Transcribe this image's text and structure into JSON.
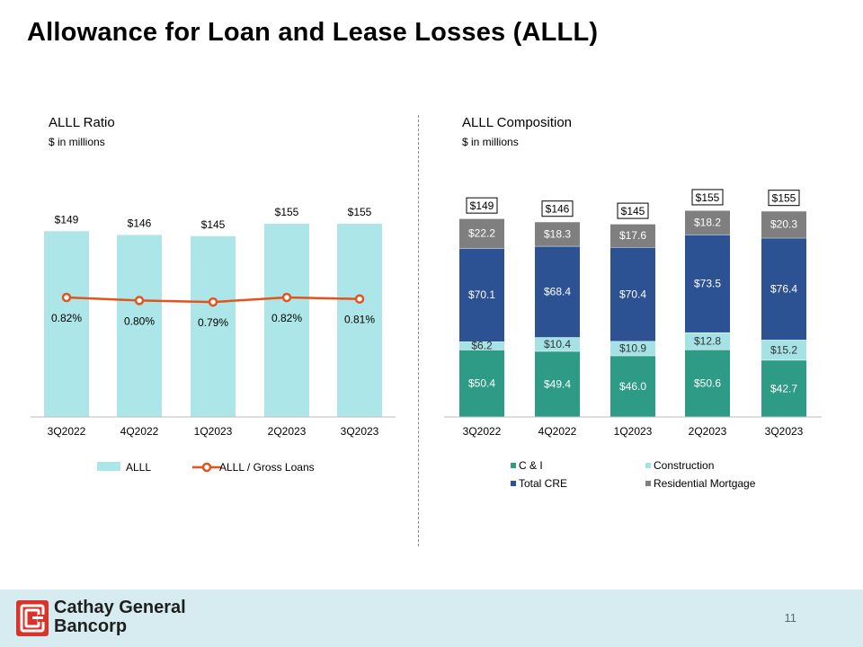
{
  "title": "Allowance for Loan and Lease Losses (ALLL)",
  "left_panel": {
    "title": "ALLL Ratio",
    "subtitle": "$ in millions"
  },
  "right_panel": {
    "title": "ALLL Composition",
    "subtitle": "$ in millions"
  },
  "footer": {
    "company_line1": "Cathay General",
    "company_line2": "Bancorp",
    "page_number": "11"
  },
  "colors": {
    "alll_bar": "#ade6e8",
    "ratio_line": "#e2541b",
    "ci": "#2e9b86",
    "construction": "#a4e2e6",
    "total_cre": "#2c5294",
    "residential_mortgage": "#7f7f7f",
    "logo_red": "#d9332b"
  },
  "chart_data": [
    {
      "type": "bar",
      "title": "ALLL Ratio",
      "categories": [
        "3Q2022",
        "4Q2022",
        "1Q2023",
        "2Q2023",
        "3Q2023"
      ],
      "series": [
        {
          "name": "ALLL",
          "kind": "bar",
          "values": [
            149,
            146,
            145,
            155,
            155
          ],
          "labels": [
            "$149",
            "$146",
            "$145",
            "$155",
            "$155"
          ]
        },
        {
          "name": "ALLL / Gross Loans",
          "kind": "line",
          "values": [
            0.82,
            0.8,
            0.79,
            0.82,
            0.81
          ],
          "labels": [
            "0.82%",
            "0.80%",
            "0.79%",
            "0.82%",
            "0.81%"
          ]
        }
      ],
      "ylim": [
        0,
        160
      ],
      "ratio_ylim": [
        0.5,
        1.0
      ],
      "legend": "bottom",
      "grid": false
    },
    {
      "type": "bar",
      "stacked": true,
      "title": "ALLL Composition",
      "categories": [
        "3Q2022",
        "4Q2022",
        "1Q2023",
        "2Q2023",
        "3Q2023"
      ],
      "series": [
        {
          "name": "C & I",
          "values": [
            50.4,
            49.4,
            46.0,
            50.6,
            42.7
          ],
          "labels": [
            "$50.4",
            "$49.4",
            "$46.0",
            "$50.6",
            "$42.7"
          ]
        },
        {
          "name": "Construction",
          "values": [
            6.2,
            10.4,
            10.9,
            12.8,
            15.2
          ],
          "labels": [
            "$6.2",
            "$10.4",
            "$10.9",
            "$12.8",
            "$15.2"
          ]
        },
        {
          "name": "Total CRE",
          "values": [
            70.1,
            68.4,
            70.4,
            73.5,
            76.4
          ],
          "labels": [
            "$70.1",
            "$68.4",
            "$70.4",
            "$73.5",
            "$76.4"
          ]
        },
        {
          "name": "Residential Mortgage",
          "values": [
            22.2,
            18.3,
            17.6,
            18.2,
            20.3
          ],
          "labels": [
            "$22.2",
            "$18.3",
            "$17.6",
            "$18.2",
            "$20.3"
          ]
        }
      ],
      "totals": [
        149,
        146,
        145,
        155,
        155
      ],
      "total_labels": [
        "$149",
        "$146",
        "$145",
        "$155",
        "$155"
      ],
      "ylim": [
        0,
        160
      ],
      "legend": "bottom",
      "grid": false
    }
  ]
}
